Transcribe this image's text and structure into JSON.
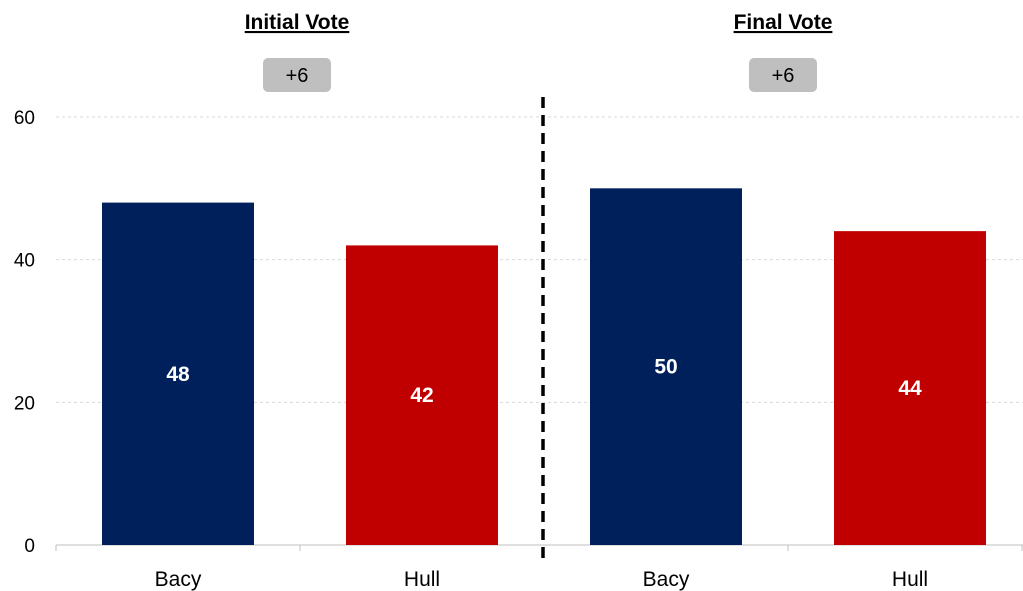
{
  "chart_data": {
    "type": "bar",
    "panels": [
      {
        "title": "Initial Vote",
        "margin_label": "+6",
        "categories": [
          "Bacy",
          "Hull"
        ],
        "values": [
          48,
          42
        ],
        "data_labels": [
          "48",
          "42"
        ]
      },
      {
        "title": "Final Vote",
        "margin_label": "+6",
        "categories": [
          "Bacy",
          "Hull"
        ],
        "values": [
          50,
          44
        ],
        "data_labels": [
          "50",
          "44"
        ]
      }
    ],
    "ylim": [
      0,
      60
    ],
    "yticks": [
      "0",
      "20",
      "40",
      "60"
    ],
    "ytick_values": [
      0,
      20,
      40,
      60
    ],
    "grid": true,
    "colors": {
      "Bacy": "#00205b",
      "Hull": "#c00000",
      "badge": "#bfbfbf",
      "grid": "#d9d9d9",
      "divider": "#000000"
    }
  }
}
